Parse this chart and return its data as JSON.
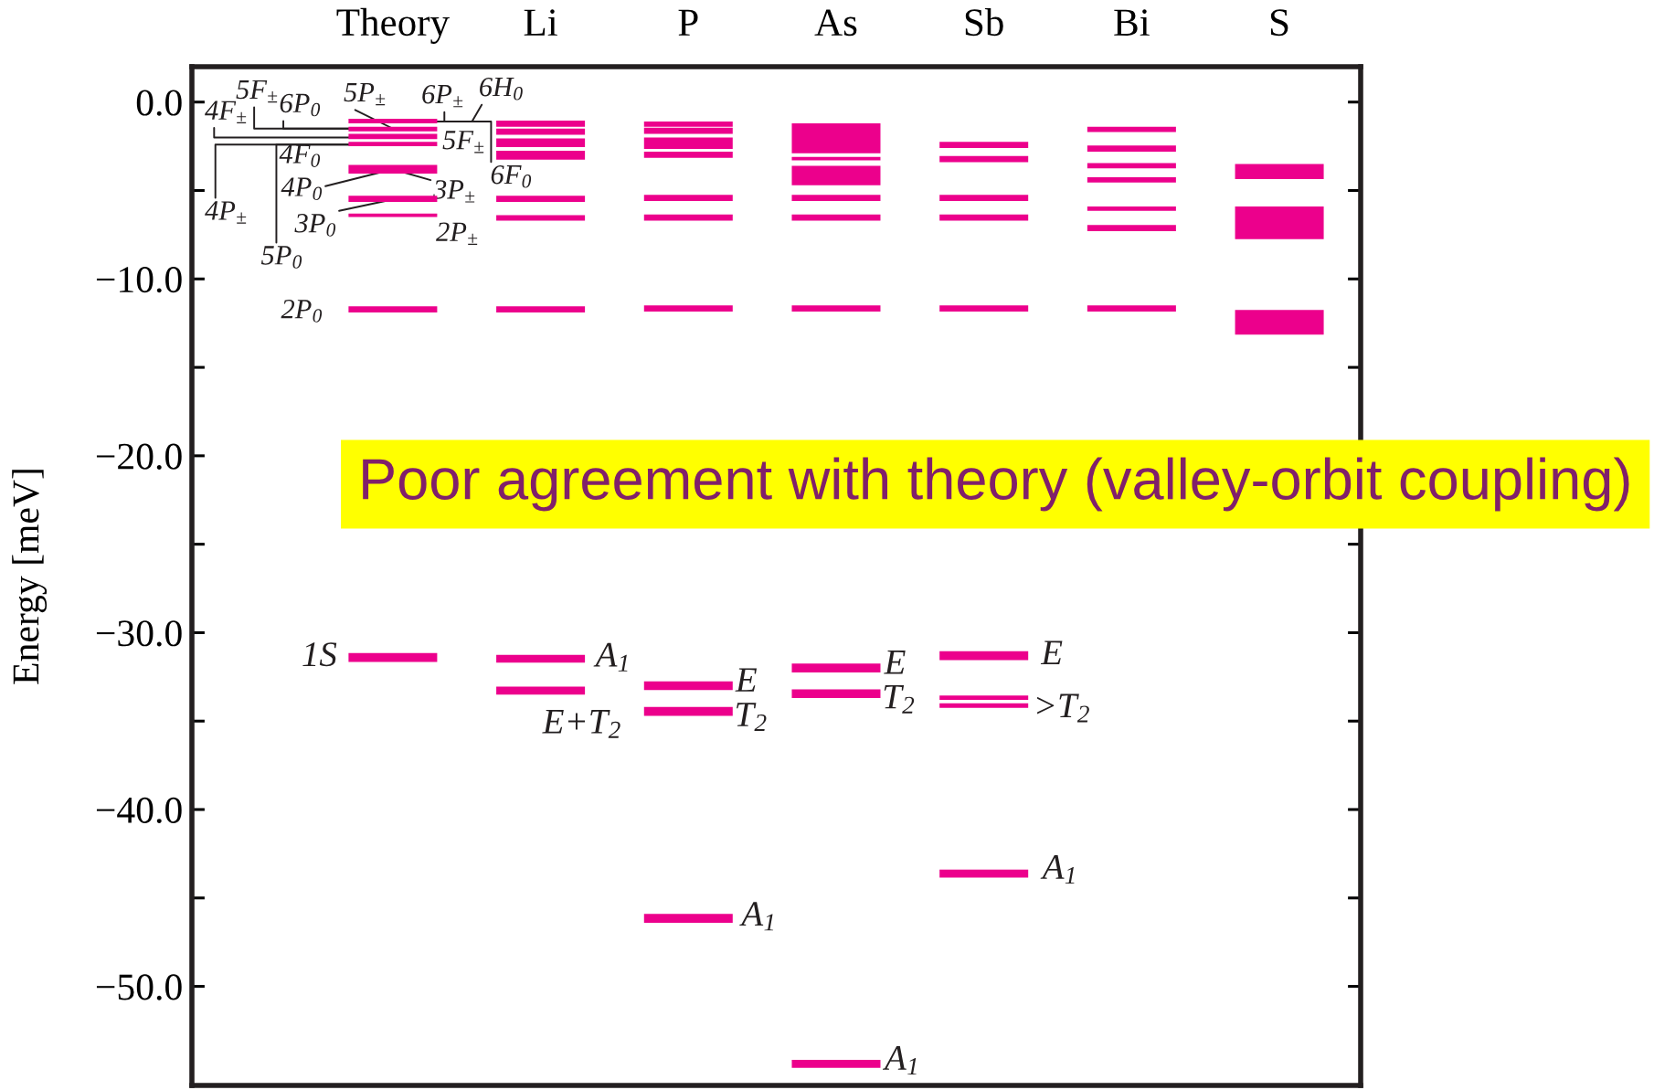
{
  "chart_data": {
    "type": "bar",
    "categories": [
      "Theory",
      "Li",
      "P",
      "As",
      "Sb",
      "Bi",
      "S"
    ],
    "ylabel": "Energy [meV]",
    "ylim": [
      -55.6,
      2.0
    ],
    "yticks": [
      {
        "value": 0,
        "label": "0.0"
      },
      {
        "value": -5,
        "label": null
      },
      {
        "value": -10,
        "label": "−10.0"
      },
      {
        "value": -15,
        "label": null
      },
      {
        "value": -20,
        "label": "−20.0"
      },
      {
        "value": -25,
        "label": null
      },
      {
        "value": -30,
        "label": "−30.0"
      },
      {
        "value": -35,
        "label": null
      },
      {
        "value": -40,
        "label": "−40.0"
      },
      {
        "value": -45,
        "label": null
      },
      {
        "value": -50,
        "label": "−50.0"
      }
    ],
    "series": [
      {
        "color": "#ec008c",
        "base": [
          -1.2,
          -1.4,
          -1.4,
          -2.9,
          -2.6,
          -1.7,
          -4.35
        ],
        "values": [
          0.25,
          0.35,
          0.3,
          1.7,
          0.35,
          0.3,
          0.85
        ]
      },
      {
        "color": "#ec008c",
        "base": [
          -1.65,
          -1.85,
          -1.8,
          -3.3,
          -3.4,
          -2.8,
          -7.75
        ],
        "values": [
          0.25,
          0.35,
          0.35,
          0.2,
          0.35,
          0.35,
          1.85
        ]
      },
      {
        "color": "#ec008c",
        "base": [
          -2.1,
          -2.55,
          -2.65,
          -4.7,
          -5.6,
          -3.75,
          -13.15
        ],
        "values": [
          0.3,
          0.5,
          0.65,
          1.1,
          0.35,
          0.3,
          1.4
        ]
      },
      {
        "color": "#ec008c",
        "base": [
          -2.5,
          -3.25,
          -3.15,
          -5.6,
          -6.7,
          -4.55,
          null
        ],
        "values": [
          0.25,
          0.5,
          0.35,
          0.35,
          0.35,
          0.3,
          null
        ]
      },
      {
        "color": "#ec008c",
        "base": [
          -4.05,
          -5.65,
          -5.6,
          -6.7,
          -11.85,
          -6.15,
          null
        ],
        "values": [
          0.5,
          0.35,
          0.35,
          0.35,
          0.35,
          0.25,
          null
        ]
      },
      {
        "color": "#ec008c",
        "base": [
          -5.65,
          -6.7,
          -6.7,
          -11.85,
          -31.55,
          -7.3,
          null
        ],
        "values": [
          0.35,
          0.3,
          0.35,
          0.35,
          0.5,
          0.35,
          null
        ]
      },
      {
        "color": "#ec008c",
        "base": [
          -6.5,
          -11.9,
          -11.85,
          -32.25,
          -33.8,
          -11.85,
          null
        ],
        "values": [
          0.2,
          0.35,
          0.35,
          0.5,
          0.25,
          0.35,
          null
        ]
      },
      {
        "color": "#ec008c",
        "base": [
          -11.9,
          -31.7,
          -33.25,
          -33.7,
          -34.25,
          null,
          null
        ],
        "values": [
          0.35,
          0.45,
          0.5,
          0.5,
          0.25,
          null,
          null
        ]
      },
      {
        "color": "#ec008c",
        "base": [
          -31.65,
          -33.5,
          -34.7,
          -54.6,
          -43.85,
          null,
          null
        ],
        "values": [
          0.5,
          0.45,
          0.5,
          0.45,
          0.45,
          null,
          null
        ]
      },
      {
        "color": "#ec008c",
        "base": [
          null,
          null,
          -46.4,
          null,
          null,
          null,
          null
        ],
        "values": [
          null,
          null,
          0.5,
          null,
          null,
          null,
          null
        ]
      }
    ],
    "annotations": [
      {
        "text": "4F$_{±}$",
        "x": "Theory",
        "y": -2.0
      },
      {
        "text": "5F$_{±}$",
        "x": "Theory",
        "y": -1.5
      },
      {
        "text": "6P$_{0}$",
        "x": "Theory",
        "y": -1.5
      },
      {
        "text": "5P$_{±}$",
        "x": "Theory",
        "y": -1.5
      },
      {
        "text": "6P$_{±}$",
        "x": "Theory",
        "y": -1.1
      },
      {
        "text": "6H$_{0}$",
        "x": "Theory",
        "y": -1.1
      },
      {
        "text": "5F$_{±}$",
        "x": "Theory",
        "y": -1.1
      },
      {
        "text": "4F$_{0}$",
        "x": "Theory",
        "y": -2.4
      },
      {
        "text": "4P$_{0}$",
        "x": "Theory",
        "y": -3.8
      },
      {
        "text": "3P$_{±}$",
        "x": "Theory",
        "y": -3.8
      },
      {
        "text": "6F$_{0}$",
        "x": "Theory",
        "y": -1.1
      },
      {
        "text": "4P$_{±}$",
        "x": "Theory",
        "y": -2.4
      },
      {
        "text": "3P$_{0}$",
        "x": "Theory",
        "y": -5.5
      },
      {
        "text": "2P$_{±}$",
        "x": "Theory",
        "y": -6.4
      },
      {
        "text": "5P$_{0}$",
        "x": "Theory",
        "y": -2.4
      },
      {
        "text": "2P$_{0}$",
        "x": "Theory",
        "y": -11.7
      },
      {
        "text": "1S",
        "x": "Theory",
        "y": -31.4
      },
      {
        "text": "A$_{1}$",
        "x": "Li",
        "y": -31.5
      },
      {
        "text": "E+T$_{2}$",
        "x": "Li",
        "y": -33.3
      },
      {
        "text": "E",
        "x": "P",
        "y": -33.0
      },
      {
        "text": "T$_{2}$",
        "x": "P",
        "y": -34.5
      },
      {
        "text": "A$_{1}$",
        "x": "P",
        "y": -46.2
      },
      {
        "text": "E",
        "x": "As",
        "y": -32.0
      },
      {
        "text": "T$_{2}$",
        "x": "As",
        "y": -33.5
      },
      {
        "text": "A$_{1}$",
        "x": "As",
        "y": -54.4
      },
      {
        "text": "E",
        "x": "Sb",
        "y": -31.3
      },
      {
        "text": ">T$_{2}$",
        "x": "Sb",
        "y": -33.9
      },
      {
        "text": "A$_{1}$",
        "x": "Sb",
        "y": -43.6
      },
      "Poor agreement with theory (valley-orbit coupling)"
    ]
  }
}
